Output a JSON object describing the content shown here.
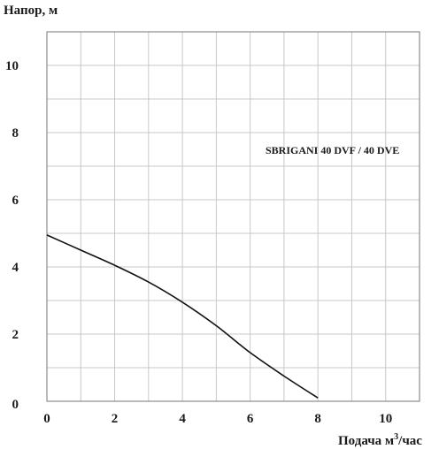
{
  "chart_data": {
    "type": "line",
    "ylabel": "Напор, м",
    "xlabel_prefix": "Подача  м",
    "xlabel_sup": "3",
    "xlabel_suffix": "/час",
    "annotation": "SBRIGANI 40 DVF / 40 DVE",
    "xlim": [
      0,
      11
    ],
    "ylim": [
      0,
      11
    ],
    "x_ticks": [
      "0",
      "2",
      "4",
      "6",
      "8",
      "10"
    ],
    "y_ticks": [
      "0",
      "2",
      "4",
      "6",
      "8",
      "10"
    ],
    "grid": true,
    "series": [
      {
        "x": [
          0,
          1,
          2,
          3,
          4,
          5,
          6,
          7,
          8
        ],
        "y": [
          4.95,
          4.5,
          4.05,
          3.55,
          2.95,
          2.25,
          1.45,
          0.75,
          0.1
        ]
      }
    ]
  }
}
